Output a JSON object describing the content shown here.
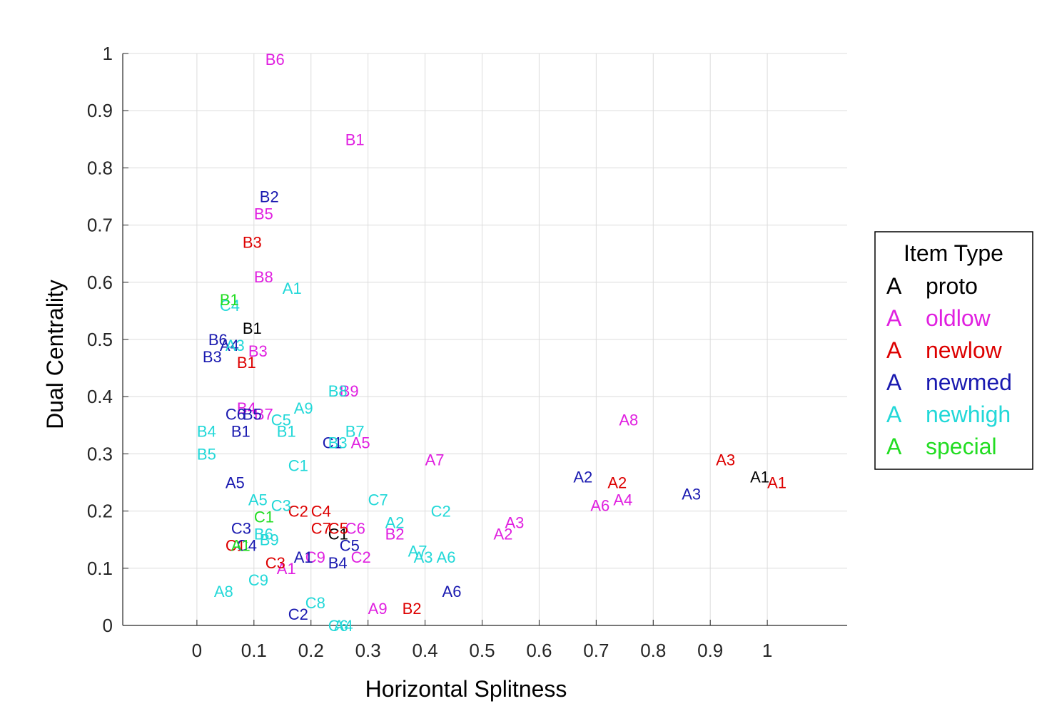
{
  "chart_data": {
    "type": "scatter",
    "title": "",
    "xlabel": "Horizontal Splitness",
    "ylabel": "Dual Centrality",
    "xlim": [
      -0.13,
      1.14
    ],
    "ylim": [
      0,
      1
    ],
    "xticks": [
      "0",
      "0.1",
      "0.2",
      "0.3",
      "0.4",
      "0.5",
      "0.6",
      "0.7",
      "0.8",
      "0.9",
      "1"
    ],
    "yticks": [
      "0",
      "0.1",
      "0.2",
      "0.3",
      "0.4",
      "0.5",
      "0.6",
      "0.7",
      "0.8",
      "0.9",
      "1"
    ],
    "grid": true,
    "legend": {
      "title": "Item Type",
      "placement": "right",
      "marker_text": "A",
      "entries": [
        {
          "name": "proto",
          "color": "#000000"
        },
        {
          "name": "oldlow",
          "color": "#e020e0"
        },
        {
          "name": "newlow",
          "color": "#dd0000"
        },
        {
          "name": "newmed",
          "color": "#1a1ab0"
        },
        {
          "name": "newhigh",
          "color": "#22d8d8"
        },
        {
          "name": "special",
          "color": "#22dd22"
        }
      ]
    },
    "series": [
      {
        "name": "proto",
        "color": "#000000",
        "points": [
          {
            "label": "B1",
            "x": 0.08,
            "y": 0.52
          },
          {
            "label": "A1",
            "x": 0.97,
            "y": 0.26
          },
          {
            "label": "C1",
            "x": 0.23,
            "y": 0.16
          }
        ]
      },
      {
        "name": "oldlow",
        "color": "#e020e0",
        "points": [
          {
            "label": "B6",
            "x": 0.12,
            "y": 0.99
          },
          {
            "label": "B1",
            "x": 0.26,
            "y": 0.85
          },
          {
            "label": "B5",
            "x": 0.1,
            "y": 0.72
          },
          {
            "label": "B8",
            "x": 0.1,
            "y": 0.61
          },
          {
            "label": "B3",
            "x": 0.09,
            "y": 0.48
          },
          {
            "label": "B9",
            "x": 0.25,
            "y": 0.41
          },
          {
            "label": "B4",
            "x": 0.07,
            "y": 0.38
          },
          {
            "label": "B7",
            "x": 0.1,
            "y": 0.37
          },
          {
            "label": "A5",
            "x": 0.27,
            "y": 0.32
          },
          {
            "label": "A7",
            "x": 0.4,
            "y": 0.29
          },
          {
            "label": "A8",
            "x": 0.74,
            "y": 0.36
          },
          {
            "label": "A4",
            "x": 0.73,
            "y": 0.22
          },
          {
            "label": "A6",
            "x": 0.69,
            "y": 0.21
          },
          {
            "label": "A3",
            "x": 0.54,
            "y": 0.18
          },
          {
            "label": "A2",
            "x": 0.52,
            "y": 0.16
          },
          {
            "label": "C6",
            "x": 0.26,
            "y": 0.17
          },
          {
            "label": "B2",
            "x": 0.33,
            "y": 0.16
          },
          {
            "label": "C2",
            "x": 0.27,
            "y": 0.12
          },
          {
            "label": "C9",
            "x": 0.19,
            "y": 0.12
          },
          {
            "label": "A1",
            "x": 0.14,
            "y": 0.1
          },
          {
            "label": "A9",
            "x": 0.3,
            "y": 0.03
          }
        ]
      },
      {
        "name": "newlow",
        "color": "#dd0000",
        "points": [
          {
            "label": "B3",
            "x": 0.08,
            "y": 0.67
          },
          {
            "label": "B1",
            "x": 0.07,
            "y": 0.46
          },
          {
            "label": "A3",
            "x": 0.91,
            "y": 0.29
          },
          {
            "label": "A1",
            "x": 1.0,
            "y": 0.25
          },
          {
            "label": "A2",
            "x": 0.72,
            "y": 0.25
          },
          {
            "label": "C2",
            "x": 0.16,
            "y": 0.2
          },
          {
            "label": "C4",
            "x": 0.2,
            "y": 0.2
          },
          {
            "label": "C7",
            "x": 0.2,
            "y": 0.17
          },
          {
            "label": "C5",
            "x": 0.23,
            "y": 0.17
          },
          {
            "label": "C1",
            "x": 0.05,
            "y": 0.14
          },
          {
            "label": "C3",
            "x": 0.12,
            "y": 0.11
          },
          {
            "label": "B2",
            "x": 0.36,
            "y": 0.03
          }
        ]
      },
      {
        "name": "newmed",
        "color": "#1a1ab0",
        "points": [
          {
            "label": "B2",
            "x": 0.11,
            "y": 0.75
          },
          {
            "label": "B6",
            "x": 0.02,
            "y": 0.5
          },
          {
            "label": "A4",
            "x": 0.04,
            "y": 0.49
          },
          {
            "label": "B3",
            "x": 0.01,
            "y": 0.47
          },
          {
            "label": "C6",
            "x": 0.05,
            "y": 0.37
          },
          {
            "label": "B5",
            "x": 0.08,
            "y": 0.37
          },
          {
            "label": "B1",
            "x": 0.06,
            "y": 0.34
          },
          {
            "label": "C1",
            "x": 0.22,
            "y": 0.32
          },
          {
            "label": "A5",
            "x": 0.05,
            "y": 0.25
          },
          {
            "label": "A2",
            "x": 0.66,
            "y": 0.26
          },
          {
            "label": "A3",
            "x": 0.85,
            "y": 0.23
          },
          {
            "label": "C3",
            "x": 0.06,
            "y": 0.17
          },
          {
            "label": "C4",
            "x": 0.07,
            "y": 0.14
          },
          {
            "label": "C5",
            "x": 0.25,
            "y": 0.14
          },
          {
            "label": "A1",
            "x": 0.17,
            "y": 0.12
          },
          {
            "label": "B4",
            "x": 0.23,
            "y": 0.11
          },
          {
            "label": "A6",
            "x": 0.43,
            "y": 0.06
          },
          {
            "label": "C2",
            "x": 0.16,
            "y": 0.02
          }
        ]
      },
      {
        "name": "newhigh",
        "color": "#22d8d8",
        "points": [
          {
            "label": "A1",
            "x": 0.15,
            "y": 0.59
          },
          {
            "label": "C4",
            "x": 0.04,
            "y": 0.56
          },
          {
            "label": "A3",
            "x": 0.05,
            "y": 0.49
          },
          {
            "label": "B8",
            "x": 0.23,
            "y": 0.41
          },
          {
            "label": "A9",
            "x": 0.17,
            "y": 0.38
          },
          {
            "label": "C5",
            "x": 0.13,
            "y": 0.36
          },
          {
            "label": "B4",
            "x": 0.0,
            "y": 0.34
          },
          {
            "label": "B1",
            "x": 0.14,
            "y": 0.34
          },
          {
            "label": "B7",
            "x": 0.26,
            "y": 0.34
          },
          {
            "label": "B3",
            "x": 0.23,
            "y": 0.32
          },
          {
            "label": "B5",
            "x": 0.0,
            "y": 0.3
          },
          {
            "label": "C1",
            "x": 0.16,
            "y": 0.28
          },
          {
            "label": "C7",
            "x": 0.3,
            "y": 0.22
          },
          {
            "label": "A5",
            "x": 0.09,
            "y": 0.22
          },
          {
            "label": "C3",
            "x": 0.13,
            "y": 0.21
          },
          {
            "label": "C2",
            "x": 0.41,
            "y": 0.2
          },
          {
            "label": "A2",
            "x": 0.33,
            "y": 0.18
          },
          {
            "label": "B6",
            "x": 0.1,
            "y": 0.16
          },
          {
            "label": "B9",
            "x": 0.11,
            "y": 0.15
          },
          {
            "label": "A7",
            "x": 0.37,
            "y": 0.13
          },
          {
            "label": "A3",
            "x": 0.38,
            "y": 0.12
          },
          {
            "label": "A6",
            "x": 0.42,
            "y": 0.12
          },
          {
            "label": "C9",
            "x": 0.09,
            "y": 0.08
          },
          {
            "label": "A8",
            "x": 0.03,
            "y": 0.06
          },
          {
            "label": "C8",
            "x": 0.19,
            "y": 0.04
          },
          {
            "label": "C6",
            "x": 0.23,
            "y": 0.0
          },
          {
            "label": "A4",
            "x": 0.24,
            "y": 0.0
          }
        ]
      },
      {
        "name": "special",
        "color": "#22dd22",
        "points": [
          {
            "label": "B1",
            "x": 0.04,
            "y": 0.57
          },
          {
            "label": "C1",
            "x": 0.1,
            "y": 0.19
          },
          {
            "label": "A1",
            "x": 0.06,
            "y": 0.14
          }
        ]
      }
    ]
  }
}
